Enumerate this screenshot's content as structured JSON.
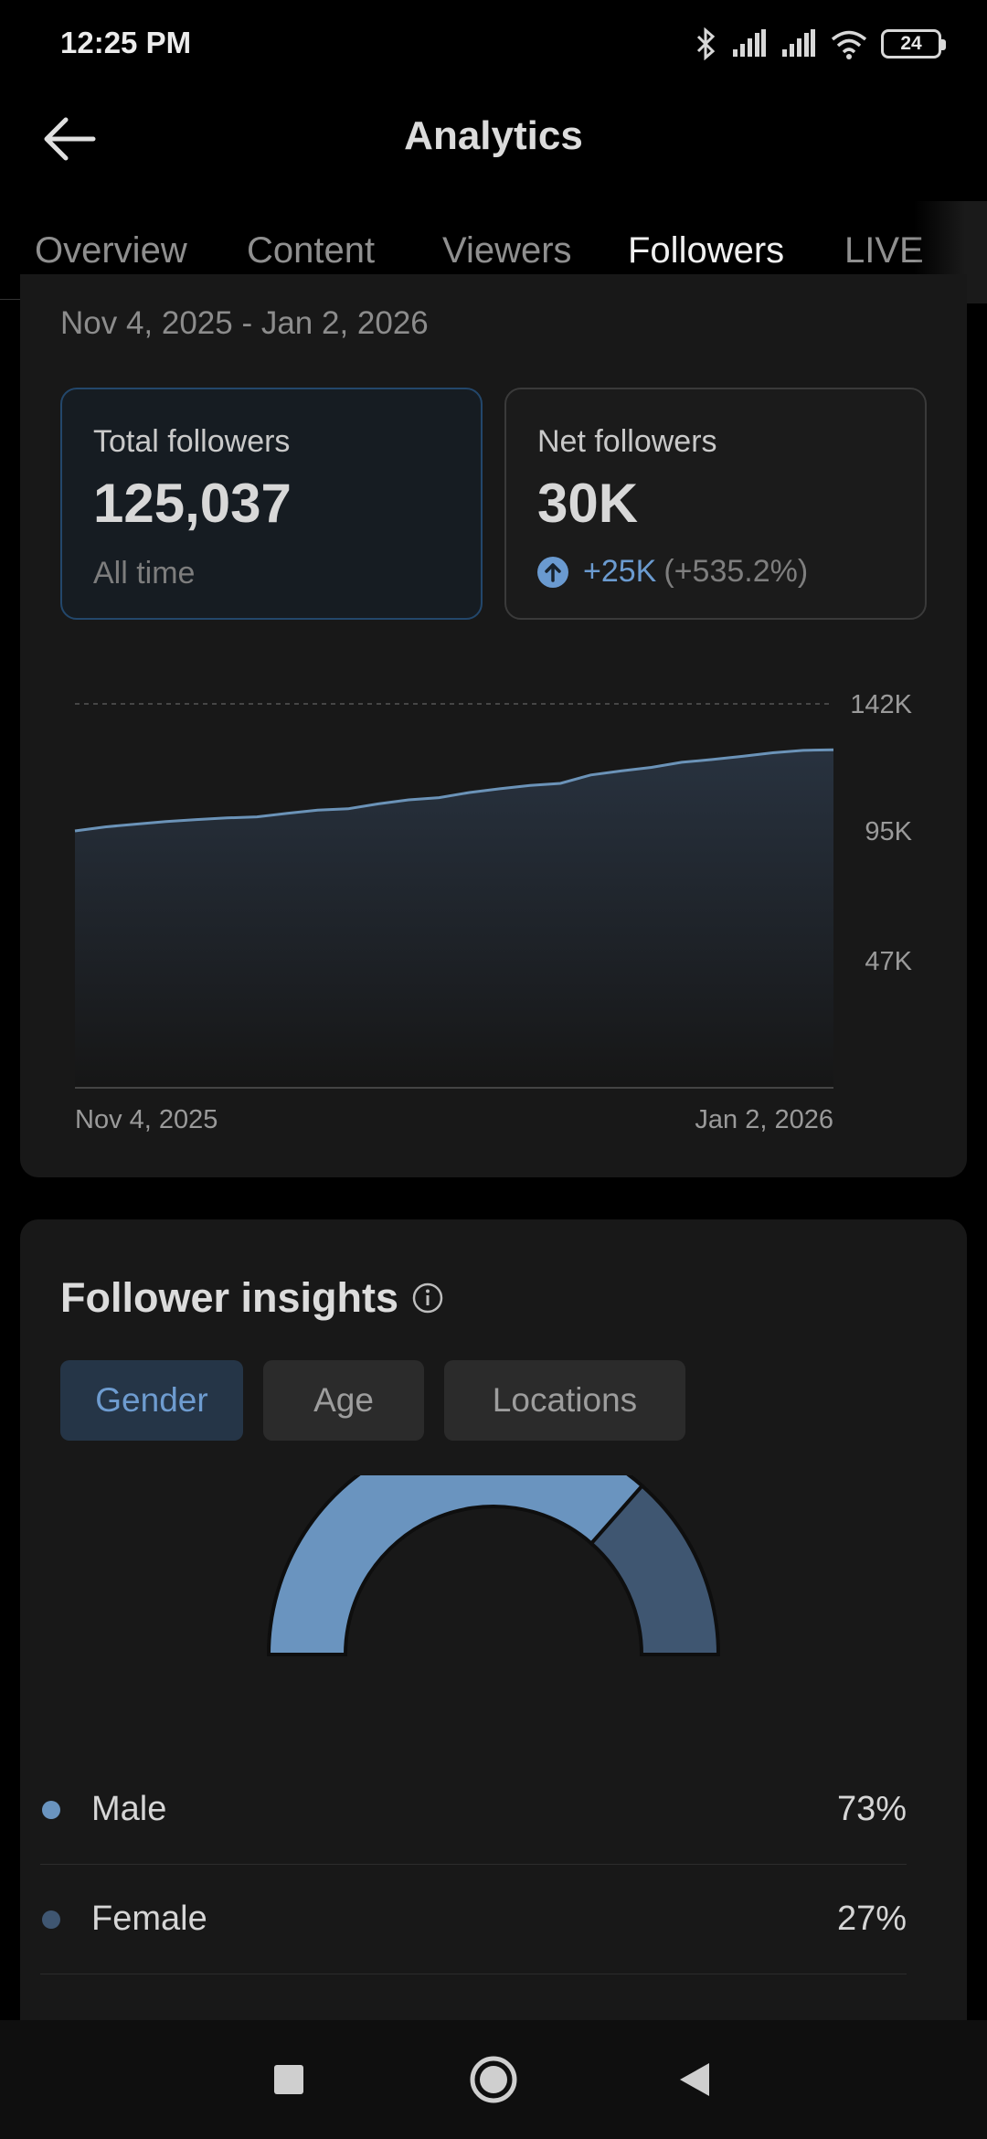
{
  "status_bar": {
    "time": "12:25 PM",
    "battery": "24"
  },
  "header": {
    "title": "Analytics"
  },
  "tabs": [
    {
      "label": "Overview"
    },
    {
      "label": "Content"
    },
    {
      "label": "Viewers"
    },
    {
      "label": "Followers"
    },
    {
      "label": "LIVE"
    }
  ],
  "active_tab": "Followers",
  "followers": {
    "date_range": "Nov 4, 2025 - Jan 2, 2026",
    "total": {
      "label": "Total followers",
      "value": "125,037",
      "sub": "All time"
    },
    "net": {
      "label": "Net followers",
      "value": "30K",
      "change": "+25K",
      "change_pct": "(+535.2%)"
    }
  },
  "chart_data": {
    "type": "area",
    "x_labels": [
      "Nov 4, 2025",
      "Jan 2, 2026"
    ],
    "y_ticks": [
      "142K",
      "95K",
      "47K"
    ],
    "y_tick_values": [
      142000,
      95000,
      47000
    ],
    "ylim": [
      0,
      142000
    ],
    "x": [
      "Nov 4, 2025",
      "",
      "",
      "",
      "",
      "",
      "",
      "",
      "",
      "",
      "",
      "",
      "",
      "",
      "",
      "",
      "",
      "",
      "",
      "",
      "",
      "",
      "",
      "",
      "",
      "Jan 2, 2026"
    ],
    "series": [
      {
        "values": [
          95000,
          96500,
          97500,
          98500,
          99200,
          99800,
          100200,
          101500,
          102700,
          103200,
          105000,
          106500,
          107300,
          109200,
          110600,
          111800,
          112600,
          115700,
          117200,
          118500,
          120400,
          121400,
          122600,
          123900,
          124800,
          125037
        ]
      }
    ],
    "grid": true,
    "colors": {
      "line": "#6b93b8",
      "fill_top": "#28323f",
      "fill_bottom": "#161616",
      "grid": "#555555"
    }
  },
  "insights": {
    "title": "Follower insights",
    "chips": [
      {
        "label": "Gender"
      },
      {
        "label": "Age"
      },
      {
        "label": "Locations"
      }
    ],
    "active_chip": "Gender",
    "gender": [
      {
        "label": "Male",
        "value": "73%",
        "share": 0.73,
        "color": "#6a94bf"
      },
      {
        "label": "Female",
        "value": "27%",
        "share": 0.27,
        "color": "#3f5671"
      }
    ]
  },
  "icons": {
    "back": "arrow-left-icon",
    "info": "info-icon",
    "up": "arrow-up-circle-icon",
    "nav": [
      "square-icon",
      "circle-icon",
      "triangle-back-icon"
    ]
  }
}
